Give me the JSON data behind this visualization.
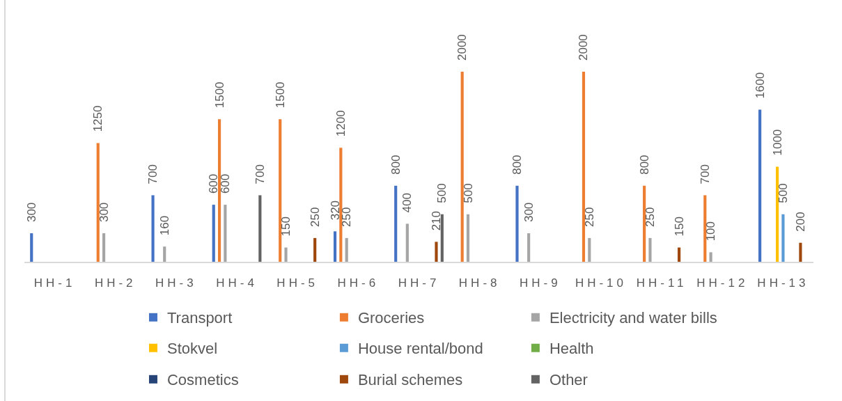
{
  "chart_data": {
    "type": "bar",
    "categories": [
      "HH-1",
      "HH-2",
      "HH-3",
      "HH-4",
      "HH-5",
      "HH-6",
      "HH-7",
      "HH-8",
      "HH-9",
      "HH-10",
      "HH-11",
      "HH-12",
      "HH-13"
    ],
    "series": [
      {
        "name": "Transport",
        "color": "#4472c4",
        "values": [
          300,
          null,
          700,
          600,
          null,
          320,
          800,
          null,
          800,
          null,
          null,
          null,
          1600
        ]
      },
      {
        "name": "Groceries",
        "color": "#ed7d31",
        "values": [
          null,
          1250,
          null,
          1500,
          1500,
          1200,
          null,
          2000,
          null,
          2000,
          800,
          700,
          null
        ]
      },
      {
        "name": "Electricity and water bills",
        "color": "#a5a5a5",
        "values": [
          null,
          300,
          160,
          600,
          150,
          250,
          400,
          500,
          300,
          250,
          250,
          100,
          null
        ]
      },
      {
        "name": "Stokvel",
        "color": "#ffc000",
        "values": [
          null,
          null,
          null,
          null,
          null,
          null,
          null,
          null,
          null,
          null,
          null,
          null,
          1000
        ]
      },
      {
        "name": "House rental/bond",
        "color": "#5b9bd5",
        "values": [
          null,
          null,
          null,
          null,
          null,
          null,
          null,
          null,
          null,
          null,
          null,
          null,
          500
        ]
      },
      {
        "name": "Health",
        "color": "#70ad47",
        "values": [
          null,
          null,
          null,
          null,
          null,
          null,
          null,
          null,
          null,
          null,
          null,
          null,
          null
        ]
      },
      {
        "name": "Cosmetics",
        "color": "#264478",
        "values": [
          null,
          null,
          null,
          null,
          null,
          null,
          null,
          null,
          null,
          null,
          null,
          null,
          null
        ]
      },
      {
        "name": "Burial schemes",
        "color": "#9e480e",
        "values": [
          null,
          null,
          null,
          null,
          250,
          null,
          210,
          null,
          null,
          null,
          150,
          null,
          200
        ]
      },
      {
        "name": "Other",
        "color": "#636363",
        "values": [
          null,
          null,
          null,
          700,
          null,
          null,
          500,
          null,
          null,
          null,
          null,
          null,
          null
        ]
      }
    ],
    "data_labels": true,
    "grid": false,
    "legend": "bottom",
    "tick_labels": "x"
  }
}
